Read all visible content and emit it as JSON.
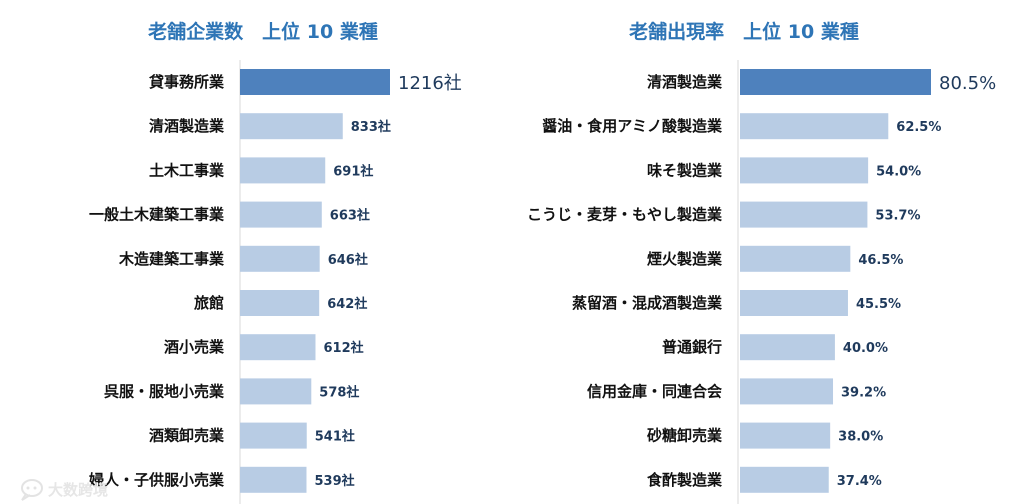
{
  "chart_data": [
    {
      "type": "bar",
      "orientation": "horizontal",
      "title": "老舗企業数　上位 10 業種",
      "unit": "社",
      "categories": [
        "貸事務所業",
        "清酒製造業",
        "土木工事業",
        "一般土木建築工事業",
        "木造建築工事業",
        "旅館",
        "酒小売業",
        "呉服・服地小売業",
        "酒類卸売業",
        "婦人・子供服小売業"
      ],
      "values": [
        1216,
        833,
        691,
        663,
        646,
        642,
        612,
        578,
        541,
        539
      ],
      "value_labels": [
        "1216社",
        "833社",
        "691社",
        "663社",
        "646社",
        "642社",
        "612社",
        "578社",
        "541社",
        "539社"
      ],
      "highlight_color": "#4e81bd",
      "bar_color": "#b8cce4"
    },
    {
      "type": "bar",
      "orientation": "horizontal",
      "title": "老舗出現率　上位 10 業種",
      "unit": "%",
      "categories": [
        "清酒製造業",
        "醤油・食用アミノ酸製造業",
        "味そ製造業",
        "こうじ・麦芽・もやし製造業",
        "煙火製造業",
        "蒸留酒・混成酒製造業",
        "普通銀行",
        "信用金庫・同連合会",
        "砂糖卸売業",
        "食酢製造業"
      ],
      "values": [
        80.5,
        62.5,
        54.0,
        53.7,
        46.5,
        45.5,
        40.0,
        39.2,
        38.0,
        37.4
      ],
      "value_labels": [
        "80.5%",
        "62.5%",
        "54.0%",
        "53.7%",
        "46.5%",
        "45.5%",
        "40.0%",
        "39.2%",
        "38.0%",
        "37.4%"
      ],
      "highlight_color": "#4e81bd",
      "bar_color": "#b8cce4"
    }
  ],
  "watermark": {
    "text": "大数跨境",
    "icon": "chat-bubble-icon"
  }
}
